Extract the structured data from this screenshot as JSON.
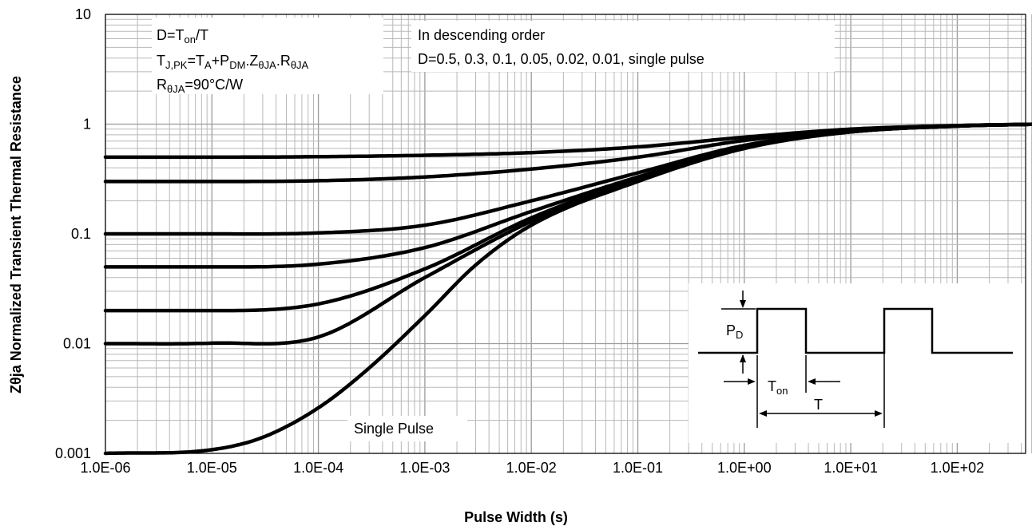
{
  "chart_data": {
    "type": "line",
    "x_scale": "log",
    "y_scale": "log",
    "xlabel": "Pulse Width (s)",
    "ylabel": "Zθja Normalized Transient Thermal Resistance",
    "xlim": [
      1e-06,
      600
    ],
    "ylim": [
      0.001,
      10
    ],
    "x_ticks": [
      "1.0E-06",
      "1.0E-05",
      "1.0E-04",
      "1.0E-03",
      "1.0E-02",
      "1.0E-01",
      "1.0E+00",
      "1.0E+01",
      "1.0E+02"
    ],
    "y_ticks": [
      "0.001",
      "0.01",
      "0.1",
      "1",
      "10"
    ],
    "grid": true,
    "series": [
      {
        "name": "D=0.5",
        "x": [
          1e-06,
          1e-05,
          0.0001,
          0.001,
          0.01,
          0.1,
          1,
          10,
          100,
          600
        ],
        "y": [
          0.5,
          0.5,
          0.505,
          0.52,
          0.55,
          0.62,
          0.76,
          0.9,
          0.97,
          1.0
        ]
      },
      {
        "name": "D=0.3",
        "x": [
          1e-06,
          1e-05,
          0.0001,
          0.001,
          0.01,
          0.1,
          1,
          10,
          100,
          600
        ],
        "y": [
          0.3,
          0.3,
          0.305,
          0.33,
          0.39,
          0.5,
          0.71,
          0.88,
          0.97,
          1.0
        ]
      },
      {
        "name": "D=0.1",
        "x": [
          1e-06,
          1e-05,
          0.0001,
          0.001,
          0.01,
          0.1,
          1,
          10,
          100,
          600
        ],
        "y": [
          0.1,
          0.1,
          0.102,
          0.12,
          0.2,
          0.36,
          0.64,
          0.86,
          0.96,
          1.0
        ]
      },
      {
        "name": "D=0.05",
        "x": [
          1e-06,
          1e-05,
          0.0001,
          0.001,
          0.01,
          0.1,
          1,
          10,
          100,
          600
        ],
        "y": [
          0.05,
          0.05,
          0.053,
          0.075,
          0.16,
          0.33,
          0.62,
          0.85,
          0.96,
          1.0
        ]
      },
      {
        "name": "D=0.02",
        "x": [
          1e-06,
          1e-05,
          0.0001,
          0.001,
          0.01,
          0.1,
          1,
          10,
          100,
          600
        ],
        "y": [
          0.02,
          0.02,
          0.023,
          0.048,
          0.14,
          0.32,
          0.61,
          0.85,
          0.96,
          1.0
        ]
      },
      {
        "name": "D=0.01",
        "x": [
          1e-06,
          1e-05,
          0.0001,
          0.001,
          0.01,
          0.1,
          1,
          10,
          100,
          600
        ],
        "y": [
          0.01,
          0.0101,
          0.0115,
          0.04,
          0.13,
          0.31,
          0.61,
          0.85,
          0.96,
          1.0
        ]
      },
      {
        "name": "Single Pulse",
        "x": [
          1e-06,
          1e-05,
          3e-05,
          0.0001,
          0.0003,
          0.001,
          0.003,
          0.01,
          0.1,
          1,
          10,
          100,
          600
        ],
        "y": [
          0.001,
          0.00108,
          0.0014,
          0.0026,
          0.006,
          0.018,
          0.052,
          0.12,
          0.3,
          0.6,
          0.85,
          0.96,
          1.0
        ]
      }
    ],
    "annotations": {
      "duty_formula": {
        "base": "D=T",
        "sub": "on",
        "tail": "/T"
      },
      "peak_temp": {
        "t1": "T",
        "t1_sub": "J,PK",
        "t2": "=T",
        "t2_sub": "A",
        "t3": "+P",
        "t3_sub": "DM",
        "t4": ".Z",
        "t4_sub": "θJA",
        "t5": ".R",
        "t5_sub": "θJA"
      },
      "rth": {
        "base": "R",
        "sub": "θJA",
        "tail": "=90°C/W"
      },
      "order_title": "In descending order",
      "order_list": "D=0.5, 0.3, 0.1, 0.05, 0.02, 0.01, single pulse",
      "single_pulse_label": "Single Pulse",
      "inset": {
        "pd": "P",
        "pd_sub": "D",
        "ton": "T",
        "ton_sub": "on",
        "period": "T"
      }
    }
  }
}
